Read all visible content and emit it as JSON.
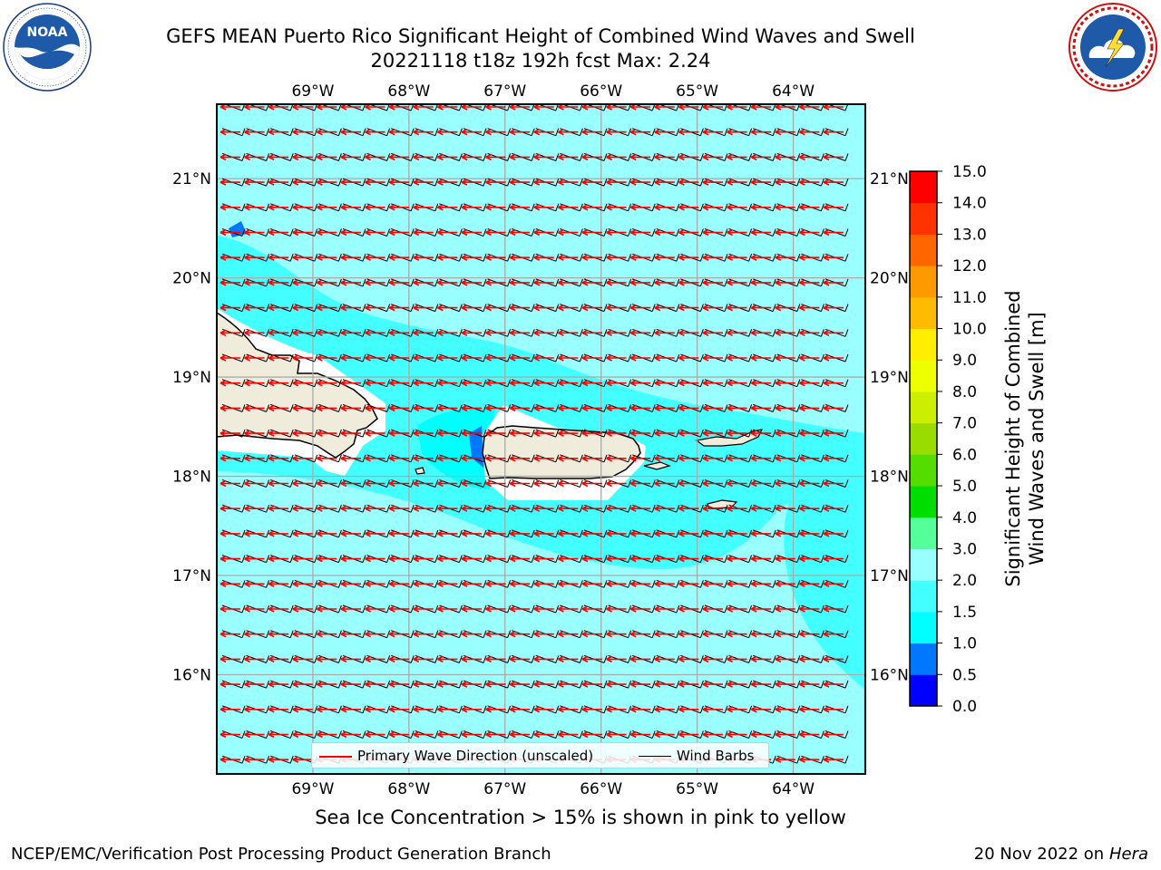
{
  "header": {
    "title_line1": "GEFS MEAN Puerto Rico Significant Height of Combined Wind Waves and Swell",
    "title_line2": "20221118 t18z 192h fcst   Max: 2.24"
  },
  "logos": {
    "left": {
      "icon": "noaa-logo-icon",
      "text": "NOAA",
      "ring_text": "NATIONAL OCEANIC AND ATMOSPHERIC ADMINISTRATION · U.S. DEPARTMENT OF COMMERCE"
    },
    "right": {
      "icon": "nws-logo-icon",
      "ring_text": "NATIONAL WEATHER SERVICE"
    }
  },
  "map": {
    "lon_labels": [
      "69°W",
      "68°W",
      "67°W",
      "66°W",
      "65°W",
      "64°W"
    ],
    "lon_values": [
      -69,
      -68,
      -67,
      -66,
      -65,
      -64
    ],
    "lat_labels": [
      "21°N",
      "20°N",
      "19°N",
      "18°N",
      "17°N",
      "16°N"
    ],
    "lat_values": [
      21,
      20,
      19,
      18,
      17,
      16
    ],
    "extent": {
      "lon_min": -70.0,
      "lon_max": -63.25,
      "lat_min": 15.0,
      "lat_max": 21.75
    },
    "gridlines": true,
    "land_color": "#efecdc",
    "background_color": "#99ffff",
    "legend": {
      "wave_direction_label": "Primary Wave Direction (unscaled)",
      "wave_direction_color": "#ff0000",
      "wind_barbs_label": "Wind Barbs",
      "wind_barbs_color": "#000000",
      "placement": "bottom-center"
    }
  },
  "colorbar": {
    "label_line1": "Significant Height of Combined",
    "label_line2": "Wind Waves and Swell [m]",
    "tick_labels": [
      "15.0",
      "14.0",
      "13.0",
      "12.0",
      "11.0",
      "10.0",
      "9.0",
      "8.0",
      "7.0",
      "6.0",
      "5.0",
      "4.0",
      "3.0",
      "2.0",
      "1.5",
      "1.0",
      "0.5",
      "0.0"
    ],
    "bands": [
      {
        "range": "0.0-0.5",
        "color": "#0000ff"
      },
      {
        "range": "0.5-1.0",
        "color": "#0077ff"
      },
      {
        "range": "1.0-1.5",
        "color": "#00ffff"
      },
      {
        "range": "1.5-2.0",
        "color": "#44ffff"
      },
      {
        "range": "2.0-3.0",
        "color": "#99ffff"
      },
      {
        "range": "3.0-4.0",
        "color": "#55ff99"
      },
      {
        "range": "4.0-5.0",
        "color": "#00dd00"
      },
      {
        "range": "5.0-6.0",
        "color": "#55dd00"
      },
      {
        "range": "6.0-7.0",
        "color": "#99dd00"
      },
      {
        "range": "7.0-8.0",
        "color": "#ccee00"
      },
      {
        "range": "8.0-9.0",
        "color": "#eeff00"
      },
      {
        "range": "9.0-10.0",
        "color": "#ffee00"
      },
      {
        "range": "10.0-11.0",
        "color": "#ffbb00"
      },
      {
        "range": "11.0-12.0",
        "color": "#ff9900"
      },
      {
        "range": "12.0-13.0",
        "color": "#ff6600"
      },
      {
        "range": "13.0-14.0",
        "color": "#ff3300"
      },
      {
        "range": "14.0-15.0",
        "color": "#ff0000"
      }
    ]
  },
  "footer": {
    "note": "Sea Ice Concentration > 15% is shown in pink to yellow",
    "credit": "NCEP/EMC/Verification Post Processing Product Generation Branch",
    "date": "20 Nov 2022 on",
    "machine": "Hera"
  }
}
